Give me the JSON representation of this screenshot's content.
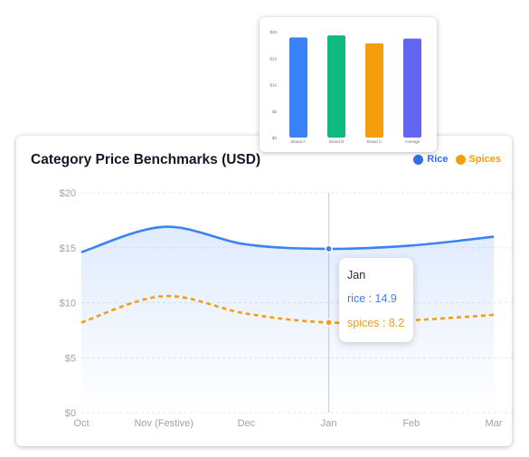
{
  "chart_data": [
    {
      "type": "bar",
      "title": "",
      "categories": [
        "Brand A",
        "Brand B",
        "Brand C",
        "Average"
      ],
      "values": [
        18.9,
        19.3,
        17.8,
        18.7
      ],
      "colors": [
        "#3b82f6",
        "#10b981",
        "#f59e0b",
        "#6366f1"
      ],
      "yticks": [
        "$0",
        "$5",
        "$10",
        "$15",
        "$20"
      ],
      "ylim": [
        0,
        20
      ],
      "grid": false
    },
    {
      "type": "line",
      "title": "Category Price Benchmarks (USD)",
      "categories": [
        "Oct",
        "Nov (Festive)",
        "Dec",
        "Jan",
        "Feb",
        "Mar"
      ],
      "yticks": [
        "$0",
        "$5",
        "$10",
        "$15",
        "$20"
      ],
      "ylim": [
        0,
        20
      ],
      "grid": true,
      "legend_position": "top-right",
      "series": [
        {
          "name": "Rice",
          "key": "rice",
          "values": [
            14.6,
            16.9,
            15.3,
            14.9,
            15.2,
            16.0
          ],
          "color": "#3b82f6",
          "style": "solid",
          "area": true
        },
        {
          "name": "Spices",
          "key": "spices",
          "values": [
            8.2,
            10.6,
            9.0,
            8.2,
            8.4,
            8.9
          ],
          "color": "#f59e0b",
          "style": "dashed",
          "area": false
        }
      ],
      "tooltip": {
        "category": "Jan",
        "rows": [
          {
            "label": "rice : 14.9",
            "color": "#3b82f6"
          },
          {
            "label": "spices : 8.2",
            "color": "#f59e0b"
          }
        ]
      }
    }
  ]
}
